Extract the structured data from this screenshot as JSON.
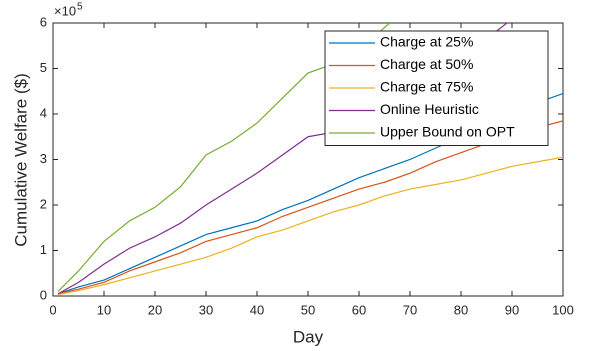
{
  "chart_data": {
    "type": "line",
    "x_label": "Day",
    "y_label": "Cumulative Welfare ($)",
    "y_multiplier": {
      "base": "×10",
      "exponent": "5"
    },
    "xlim": [
      0,
      100
    ],
    "xticks": [
      0,
      10,
      20,
      30,
      40,
      50,
      60,
      70,
      80,
      90,
      100
    ],
    "ylim": [
      0,
      6
    ],
    "yticks": [
      0,
      1,
      2,
      3,
      4,
      5,
      6
    ],
    "legend": "top-right",
    "series": [
      {
        "name": "Charge at 25%",
        "color": "#0072bd",
        "x": [
          1,
          5,
          10,
          15,
          20,
          25,
          30,
          35,
          40,
          45,
          50,
          55,
          60,
          65,
          70,
          75,
          80,
          85,
          90,
          95,
          100
        ],
        "values": [
          0.05,
          0.2,
          0.35,
          0.6,
          0.85,
          1.1,
          1.35,
          1.5,
          1.65,
          1.9,
          2.1,
          2.35,
          2.6,
          2.8,
          3.0,
          3.25,
          3.5,
          3.75,
          4.0,
          4.25,
          4.45
        ]
      },
      {
        "name": "Charge at 50%",
        "color": "#d95319",
        "x": [
          1,
          5,
          10,
          15,
          20,
          25,
          30,
          35,
          40,
          45,
          50,
          55,
          60,
          65,
          70,
          75,
          80,
          85,
          90,
          95,
          100
        ],
        "values": [
          0.05,
          0.15,
          0.3,
          0.55,
          0.75,
          0.95,
          1.2,
          1.35,
          1.5,
          1.75,
          1.95,
          2.15,
          2.35,
          2.5,
          2.7,
          2.95,
          3.15,
          3.35,
          3.5,
          3.7,
          3.85
        ]
      },
      {
        "name": "Charge at 75%",
        "color": "#edb120",
        "x": [
          1,
          5,
          10,
          15,
          20,
          25,
          30,
          35,
          40,
          45,
          50,
          55,
          60,
          65,
          70,
          75,
          80,
          85,
          90,
          95,
          100
        ],
        "values": [
          0.03,
          0.12,
          0.25,
          0.4,
          0.55,
          0.7,
          0.85,
          1.05,
          1.3,
          1.45,
          1.65,
          1.85,
          2.0,
          2.2,
          2.35,
          2.45,
          2.55,
          2.7,
          2.85,
          2.95,
          3.05
        ]
      },
      {
        "name": "Online Heuristic",
        "color": "#7e2f8e",
        "x": [
          1,
          5,
          10,
          15,
          20,
          25,
          30,
          35,
          40,
          45,
          50,
          55,
          60,
          65,
          70,
          75,
          80,
          85,
          89
        ],
        "values": [
          0.05,
          0.3,
          0.7,
          1.05,
          1.3,
          1.6,
          2.0,
          2.35,
          2.7,
          3.1,
          3.5,
          3.6,
          4.1,
          4.4,
          4.7,
          5.0,
          5.3,
          5.65,
          6.0
        ]
      },
      {
        "name": "Upper Bound on OPT",
        "color": "#77ac30",
        "x": [
          1,
          5,
          10,
          15,
          20,
          25,
          30,
          35,
          40,
          45,
          50,
          55,
          60,
          66
        ],
        "values": [
          0.1,
          0.55,
          1.2,
          1.65,
          1.95,
          2.4,
          3.1,
          3.4,
          3.8,
          4.35,
          4.9,
          5.1,
          5.4,
          6.0
        ]
      }
    ]
  }
}
